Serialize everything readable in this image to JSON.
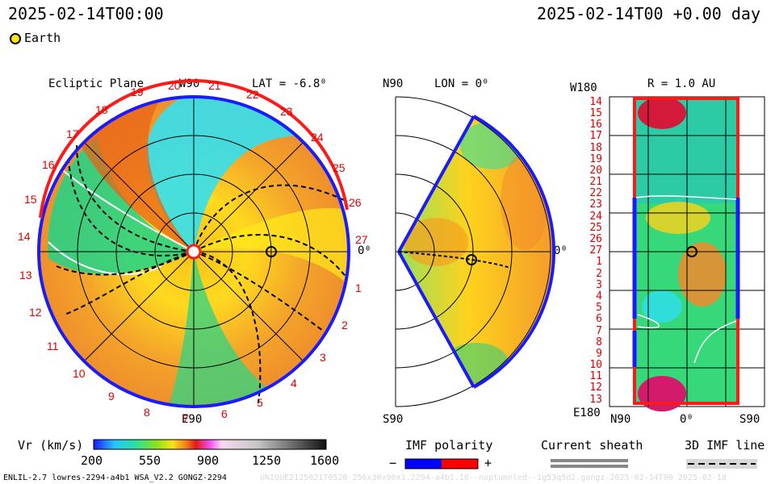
{
  "header": {
    "left_time": "2025-02-14T00:00",
    "right_time": "2025-02-14T00 +0.00 day"
  },
  "legend": {
    "earth_label": "Earth"
  },
  "panel_ecliptic": {
    "title": "Ecliptic Plane",
    "w90": "W90",
    "lat": "LAT = -6.8⁰",
    "e90": "E90",
    "zero": "0⁰",
    "ticks": [
      "19",
      "20",
      "21",
      "22",
      "23",
      "24",
      "25",
      "26",
      "27",
      "1",
      "2",
      "3",
      "4",
      "5",
      "6",
      "7",
      "8",
      "9",
      "10",
      "11",
      "12",
      "13",
      "14",
      "15",
      "16",
      "17",
      "18"
    ]
  },
  "panel_meridian": {
    "n90": "N90",
    "lon": "LON = 0⁰",
    "s90": "S90",
    "zero": "0⁰"
  },
  "panel_sphere": {
    "w180": "W180",
    "r": "R = 1.0 AU",
    "e180": "E180",
    "n90": "N90",
    "zero": "0⁰",
    "s90": "S90",
    "rows": [
      "14",
      "15",
      "16",
      "17",
      "18",
      "19",
      "20",
      "21",
      "22",
      "23",
      "24",
      "25",
      "26",
      "27",
      "1",
      "2",
      "3",
      "4",
      "5",
      "6",
      "7",
      "8",
      "9",
      "10",
      "11",
      "12",
      "13"
    ]
  },
  "colorbar": {
    "label": "Vr (km/s)",
    "ticks": [
      "200",
      "550",
      "900",
      "1250",
      "1600"
    ]
  },
  "imf": {
    "label": "IMF polarity",
    "minus": "−",
    "plus": "+",
    "neg_color": "#0000ff",
    "pos_color": "#ff0000"
  },
  "sheath": {
    "label": "Current sheath"
  },
  "imf3d": {
    "label": "3D IMF line"
  },
  "footer": {
    "model": "ENLIL-2.7 lowres-2294-a4b1 WSA_V2.2 GONGZ-2294",
    "watermark": "UNIQUE212502170520_256x30x90x1.2294-a4b1.16--noptumnled--1g53q5d2.gongz-2025-02-14T00 2025-02-18"
  }
}
